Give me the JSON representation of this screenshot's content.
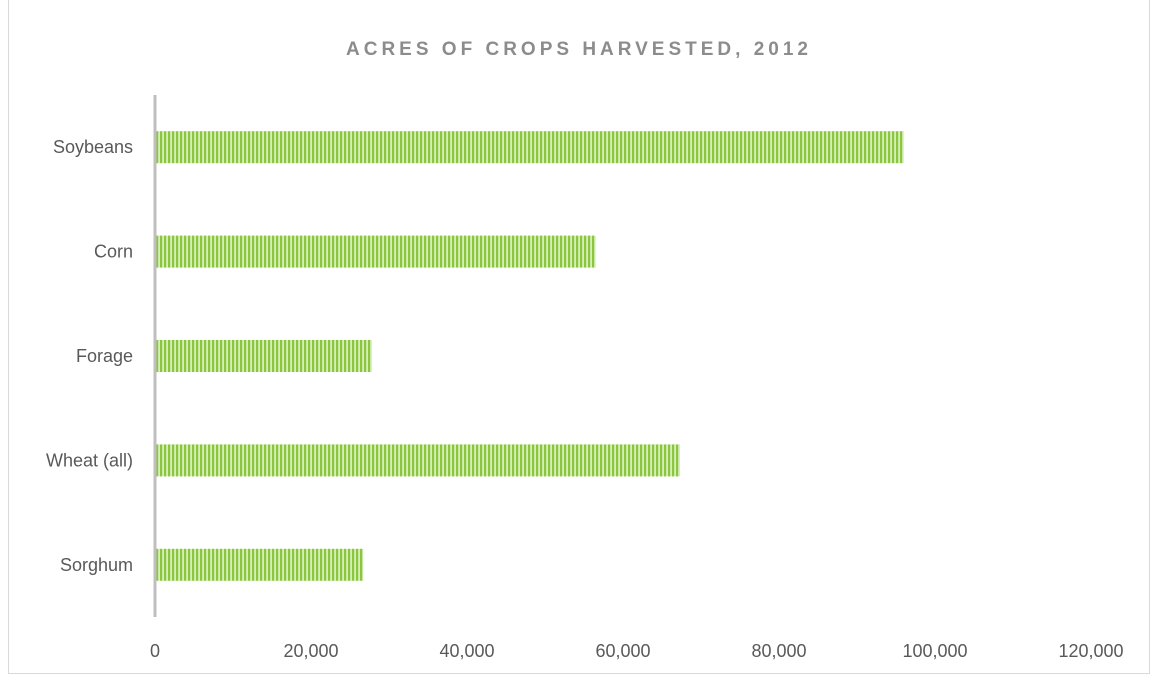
{
  "chart_data": {
    "type": "bar",
    "orientation": "horizontal",
    "title": "ACRES OF CROPS HARVESTED, 2012",
    "categories": [
      "Soybeans",
      "Corn",
      "Forage",
      "Wheat (all)",
      "Sorghum"
    ],
    "series": [
      {
        "values": [
          96000,
          56500,
          27800,
          67300,
          26700
        ],
        "color": "#92d050",
        "pattern": "vertical-stripes"
      }
    ],
    "xlim": [
      0,
      120000
    ],
    "x_ticks": [
      0,
      20000,
      40000,
      60000,
      80000,
      100000,
      120000
    ],
    "x_tick_labels": [
      "0",
      "20,000",
      "40,000",
      "60,000",
      "80,000",
      "100,000",
      "120,000"
    ],
    "xlabel": "",
    "ylabel": "",
    "grid": false,
    "legend": "none"
  }
}
